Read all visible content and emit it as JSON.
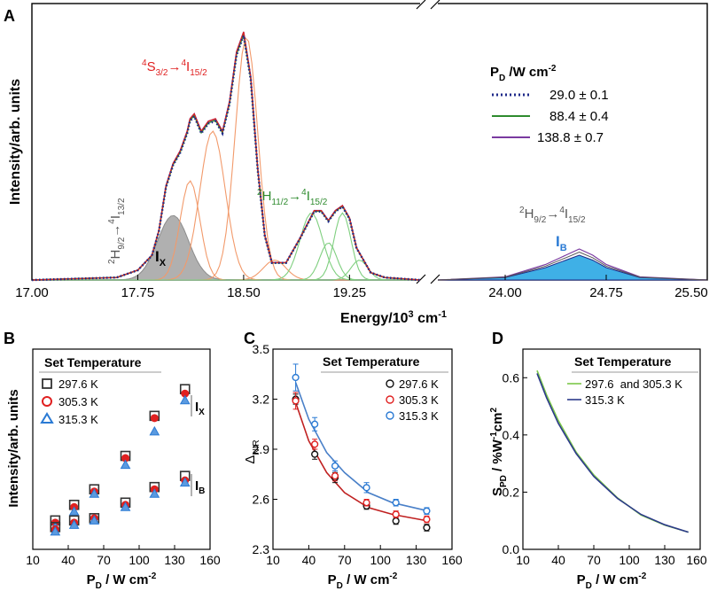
{
  "chart_data": [
    {
      "panel": "A",
      "type": "line",
      "xlabel_main": "Energy/10",
      "xlabel_sup": "3",
      "xlabel_tail": " cm",
      "xlabel_sup2": "-1",
      "ylabel": "Intensity/arb. units",
      "x_axis_break": true,
      "xticks_left": [
        17.0,
        17.75,
        18.5,
        19.25
      ],
      "xticks_left_labels": [
        "17.00",
        "17.75",
        "18.50",
        "19.25"
      ],
      "xticks_right": [
        24.0,
        24.75,
        25.5
      ],
      "xticks_right_labels": [
        "24.00",
        "24.75",
        "25.50"
      ],
      "xlim_left": [
        17.0,
        19.75
      ],
      "xlim_right": [
        23.5,
        25.5
      ],
      "ylim": [
        0,
        1.05
      ],
      "legend_title_main": "P",
      "legend_title_sub": "D",
      "legend_title_unit": " /W cm",
      "legend_title_sup": "-2",
      "legend": [
        {
          "label": "29.0 ± 0.1",
          "color": "#1f2a8a",
          "style": "dotted"
        },
        {
          "label": "88.4 ± 0.4",
          "color": "#2e8b2e",
          "style": "solid"
        },
        {
          "label": "138.8 ± 0.7",
          "color": "#7a3aa0",
          "style": "solid"
        }
      ],
      "annotations": {
        "green_S": {
          "pre": "4",
          "a": "S",
          "a_sub": "3/2",
          "arrow": "→",
          "b_pre": "4",
          "b": "I",
          "b_sub": "15/2"
        },
        "red_H11": {
          "pre": "2",
          "a": "H",
          "a_sub": "11/2",
          "arrow": "→",
          "b_pre": "4",
          "b": "I",
          "b_sub": "15/2"
        },
        "H9_13": {
          "pre": "2",
          "a": "H",
          "a_sub": "9/2",
          "arrow": "→",
          "b_pre": "4",
          "b": "I",
          "b_sub": "13/2"
        },
        "H9_15": {
          "pre": "2",
          "a": "H",
          "a_sub": "9/2",
          "arrow": "→",
          "b_pre": "4",
          "b": "I",
          "b_sub": "15/2"
        },
        "IX": {
          "main": "I",
          "sub": "X"
        },
        "IB": {
          "main": "I",
          "sub": "B"
        }
      },
      "spectrum": {
        "x": [
          17.0,
          17.6,
          17.75,
          17.85,
          17.9,
          17.95,
          18.0,
          18.05,
          18.1,
          18.12,
          18.15,
          18.2,
          18.25,
          18.3,
          18.35,
          18.4,
          18.45,
          18.5,
          18.55,
          18.6,
          18.65,
          18.7,
          18.8,
          18.9,
          19.0,
          19.05,
          19.1,
          19.15,
          19.2,
          19.25,
          19.3,
          19.4,
          19.5,
          19.75
        ],
        "y": [
          0.0,
          0.01,
          0.04,
          0.1,
          0.2,
          0.38,
          0.47,
          0.52,
          0.6,
          0.65,
          0.67,
          0.6,
          0.64,
          0.65,
          0.6,
          0.72,
          0.92,
          1.0,
          0.82,
          0.45,
          0.18,
          0.07,
          0.07,
          0.17,
          0.28,
          0.28,
          0.24,
          0.28,
          0.3,
          0.25,
          0.13,
          0.03,
          0.01,
          0.0
        ],
        "blue_x": [
          23.5,
          24.0,
          24.3,
          24.45,
          24.55,
          24.65,
          24.75,
          25.0,
          25.5
        ],
        "blue_y": [
          0.0,
          0.01,
          0.05,
          0.08,
          0.1,
          0.08,
          0.05,
          0.01,
          0.0
        ]
      },
      "components": [
        {
          "center": 18.0,
          "amp": 0.26,
          "width": 0.11,
          "color": "#8c8c8c"
        },
        {
          "center": 18.12,
          "amp": 0.4,
          "width": 0.07,
          "color": "#f29a6b"
        },
        {
          "center": 18.28,
          "amp": 0.6,
          "width": 0.09,
          "color": "#f29a6b"
        },
        {
          "center": 18.52,
          "amp": 0.98,
          "width": 0.08,
          "color": "#f29a6b"
        },
        {
          "center": 18.72,
          "amp": 0.08,
          "width": 0.08,
          "color": "#f29a6b"
        },
        {
          "center": 18.98,
          "amp": 0.27,
          "width": 0.08,
          "color": "#7fcf7f"
        },
        {
          "center": 19.1,
          "amp": 0.15,
          "width": 0.06,
          "color": "#7fcf7f"
        },
        {
          "center": 19.2,
          "amp": 0.27,
          "width": 0.06,
          "color": "#7fcf7f"
        },
        {
          "center": 19.32,
          "amp": 0.08,
          "width": 0.06,
          "color": "#7fcf7f"
        }
      ]
    },
    {
      "panel": "B",
      "type": "scatter",
      "xlabel_main": "P",
      "xlabel_sub": "D",
      "xlabel_unit": " / W cm",
      "xlabel_sup": "-2",
      "ylabel": "Intensity/arb. units",
      "xlim": [
        10,
        160
      ],
      "xticks": [
        10,
        40,
        70,
        100,
        130,
        160
      ],
      "legend_title": "Set Temperature",
      "series": [
        {
          "name": "297.6 K",
          "marker": "square",
          "color": "#333333"
        },
        {
          "name": "305.3 K",
          "marker": "circle",
          "color": "#e02020"
        },
        {
          "name": "315.3 K",
          "marker": "triangle",
          "color": "#2a7ad4"
        }
      ],
      "x": [
        29.0,
        45.0,
        62.0,
        88.4,
        113.0,
        138.8
      ],
      "IX": [
        [
          0.13,
          0.2,
          0.27,
          0.42,
          0.6,
          0.72
        ],
        [
          0.12,
          0.19,
          0.26,
          0.41,
          0.59,
          0.7
        ],
        [
          0.1,
          0.17,
          0.25,
          0.38,
          0.53,
          0.67
        ]
      ],
      "IB": [
        [
          0.1,
          0.13,
          0.14,
          0.21,
          0.28,
          0.33
        ],
        [
          0.09,
          0.12,
          0.14,
          0.2,
          0.27,
          0.31
        ],
        [
          0.08,
          0.11,
          0.13,
          0.19,
          0.25,
          0.3
        ]
      ],
      "ylim": [
        0,
        0.9
      ],
      "label_IX": {
        "main": "I",
        "sub": "X"
      },
      "label_IB": {
        "main": "I",
        "sub": "B"
      }
    },
    {
      "panel": "C",
      "type": "scatter",
      "xlabel_main": "P",
      "xlabel_sub": "D",
      "xlabel_unit": " / W cm",
      "xlabel_sup": "-2",
      "ylabel_main": "Δ",
      "ylabel_sub": "NIR",
      "xlim": [
        10,
        160
      ],
      "ylim": [
        2.3,
        3.5
      ],
      "xticks": [
        10,
        40,
        70,
        100,
        130,
        160
      ],
      "yticks": [
        2.3,
        2.6,
        2.9,
        3.2,
        3.5
      ],
      "ytick_labels": [
        "2.3",
        "2.6",
        "2.9",
        "3.2",
        "3.5"
      ],
      "legend_title": "Set Temperature",
      "x": [
        29.0,
        45.0,
        62.0,
        88.4,
        113.0,
        138.8
      ],
      "series": [
        {
          "name": "297.6 K",
          "color": "#111111",
          "values": [
            3.2,
            2.87,
            2.73,
            2.56,
            2.47,
            2.43
          ],
          "err": [
            0.03,
            0.03,
            0.03,
            0.02,
            0.02,
            0.02
          ]
        },
        {
          "name": "305.3 K",
          "color": "#e02020",
          "values": [
            3.19,
            2.93,
            2.74,
            2.58,
            2.51,
            2.48
          ],
          "err": [
            0.05,
            0.03,
            0.03,
            0.02,
            0.02,
            0.02
          ]
        },
        {
          "name": "315.3 K",
          "color": "#2a7ad4",
          "values": [
            3.33,
            3.05,
            2.8,
            2.67,
            2.58,
            2.53
          ],
          "err": [
            0.08,
            0.04,
            0.03,
            0.03,
            0.02,
            0.02
          ]
        }
      ],
      "fits": [
        {
          "color": "#c02020",
          "x": [
            29.0,
            40,
            55,
            70,
            90,
            110,
            140
          ],
          "y": [
            3.18,
            2.95,
            2.76,
            2.64,
            2.55,
            2.51,
            2.47
          ]
        },
        {
          "color": "#4a80c8",
          "x": [
            29.0,
            40,
            55,
            70,
            90,
            110,
            140
          ],
          "y": [
            3.3,
            3.08,
            2.88,
            2.76,
            2.64,
            2.58,
            2.53
          ]
        }
      ]
    },
    {
      "panel": "D",
      "type": "line",
      "xlabel_main": "P",
      "xlabel_sub": "D",
      "xlabel_unit": " / W cm",
      "xlabel_sup": "-2",
      "ylabel_main": "S",
      "ylabel_sub": "PD",
      "ylabel_unit": " / %W",
      "ylabel_sup": "-1",
      "ylabel_tail": "cm",
      "ylabel_sup2": "2",
      "xlim": [
        10,
        160
      ],
      "ylim": [
        0.0,
        0.7
      ],
      "xticks": [
        10,
        40,
        70,
        100,
        130,
        160
      ],
      "yticks": [
        0.0,
        0.2,
        0.4,
        0.6
      ],
      "ytick_labels": [
        "0.0",
        "0.2",
        "0.4",
        "0.6"
      ],
      "legend_title": "Set Temperature",
      "series": [
        {
          "name": "297.6  and 305.3 K",
          "color": "#7cc84a",
          "x": [
            22,
            30,
            40,
            55,
            70,
            90,
            110,
            130,
            150
          ],
          "values": [
            0.625,
            0.54,
            0.45,
            0.34,
            0.26,
            0.18,
            0.12,
            0.085,
            0.06
          ]
        },
        {
          "name": "315.3 K",
          "color": "#2c3a8a",
          "x": [
            22,
            30,
            40,
            55,
            70,
            90,
            110,
            130,
            150
          ],
          "values": [
            0.615,
            0.53,
            0.44,
            0.335,
            0.255,
            0.178,
            0.122,
            0.086,
            0.06
          ]
        }
      ]
    }
  ],
  "panel_letters": [
    "A",
    "B",
    "C",
    "D"
  ]
}
